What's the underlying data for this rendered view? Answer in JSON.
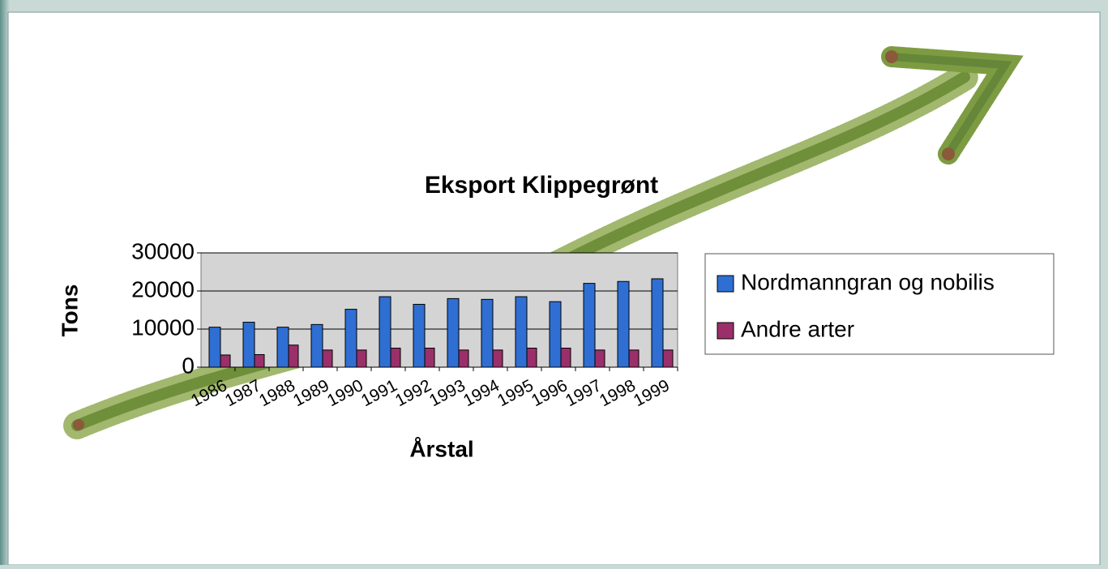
{
  "chart_data": {
    "type": "bar",
    "title": "Eksport Klippegrønt",
    "x_label": "Årstal",
    "y_label": "Tons",
    "categories": [
      "1986",
      "1987",
      "1988",
      "1989",
      "1990",
      "1991",
      "1992",
      "1993",
      "1994",
      "1995",
      "1996",
      "1997",
      "1998",
      "1999"
    ],
    "series": [
      {
        "name": "Nordmanngran og nobilis",
        "color": "#2f6fd3",
        "values": [
          10500,
          11800,
          10500,
          11200,
          15200,
          18500,
          16500,
          18000,
          17800,
          18500,
          17200,
          22000,
          22500,
          23200
        ]
      },
      {
        "name": "Andre arter",
        "color": "#9b2f6a",
        "values": [
          3200,
          3300,
          5800,
          4500,
          4500,
          5000,
          5000,
          4500,
          4500,
          5000,
          5000,
          4500,
          4500,
          4500
        ]
      }
    ],
    "ylim": [
      0,
      30000
    ],
    "yticks": [
      0,
      10000,
      20000,
      30000
    ],
    "grid": true,
    "legend": "right"
  }
}
